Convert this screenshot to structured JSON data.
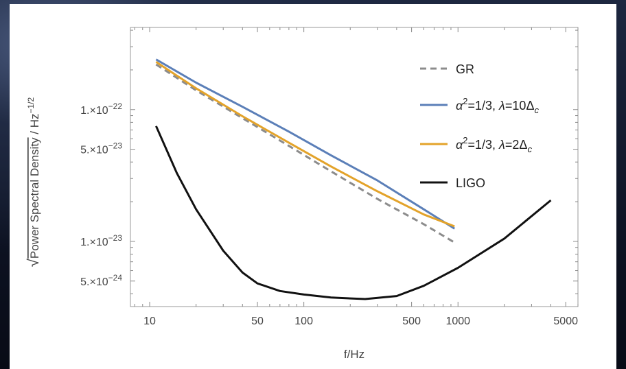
{
  "chart_data": {
    "type": "line",
    "xscale": "log",
    "yscale": "log",
    "xlim": [
      7.5,
      6000
    ],
    "ylim": [
      3.2e-24,
      4.2e-22
    ],
    "xlabel": "f/Hz",
    "ylabel_radical": "√",
    "ylabel": "Power Spectral Density",
    "ylabel_unit": " / Hz",
    "ylabel_unit_exp": "−1/2",
    "x_ticks": [
      {
        "value": 10,
        "label": "10"
      },
      {
        "value": 50,
        "label": "50"
      },
      {
        "value": 100,
        "label": "100"
      },
      {
        "value": 500,
        "label": "500"
      },
      {
        "value": 1000,
        "label": "1000"
      },
      {
        "value": 5000,
        "label": "5000"
      }
    ],
    "y_ticks": [
      {
        "value": 1e-22,
        "mant": "1.×10",
        "exp": "−22"
      },
      {
        "value": 5e-23,
        "mant": "5.×10",
        "exp": "−23"
      },
      {
        "value": 1e-23,
        "mant": "1.×10",
        "exp": "−23"
      },
      {
        "value": 5e-24,
        "mant": "5.×10",
        "exp": "−24"
      }
    ],
    "legend_position": "top-right",
    "series": [
      {
        "key": "gr",
        "color": "#8c8c8c",
        "dash": "9,6",
        "legend": [
          "GR"
        ],
        "points": [
          [
            11,
            2.2e-22
          ],
          [
            20,
            1.4e-22
          ],
          [
            40,
            8.6e-23
          ],
          [
            80,
            5.3e-23
          ],
          [
            150,
            3.4e-23
          ],
          [
            300,
            2.1e-23
          ],
          [
            600,
            1.35e-23
          ],
          [
            950,
            9.8e-24
          ]
        ]
      },
      {
        "key": "lambda10",
        "color": "#5b7fb8",
        "dash": "",
        "legend": [
          "α",
          "2",
          "=1/3, ",
          "λ",
          "=10Δ",
          "c"
        ],
        "points": [
          [
            11,
            2.4e-22
          ],
          [
            20,
            1.6e-22
          ],
          [
            40,
            1.05e-22
          ],
          [
            80,
            6.8e-23
          ],
          [
            150,
            4.5e-23
          ],
          [
            300,
            2.9e-23
          ],
          [
            600,
            1.75e-23
          ],
          [
            950,
            1.25e-23
          ]
        ]
      },
      {
        "key": "lambda2",
        "color": "#e3a32a",
        "dash": "",
        "legend": [
          "α",
          "2",
          "=1/3, ",
          "λ",
          "=2Δ",
          "c"
        ],
        "points": [
          [
            11,
            2.3e-22
          ],
          [
            20,
            1.45e-22
          ],
          [
            40,
            8.9e-23
          ],
          [
            80,
            5.6e-23
          ],
          [
            150,
            3.7e-23
          ],
          [
            300,
            2.4e-23
          ],
          [
            600,
            1.6e-23
          ],
          [
            950,
            1.3e-23
          ]
        ]
      },
      {
        "key": "ligo",
        "color": "#111111",
        "dash": "",
        "legend": [
          "LIGO"
        ],
        "points": [
          [
            11,
            7.5e-23
          ],
          [
            15,
            3.3e-23
          ],
          [
            20,
            1.75e-23
          ],
          [
            30,
            8.5e-24
          ],
          [
            40,
            5.8e-24
          ],
          [
            50,
            4.8e-24
          ],
          [
            70,
            4.2e-24
          ],
          [
            100,
            3.95e-24
          ],
          [
            150,
            3.75e-24
          ],
          [
            250,
            3.65e-24
          ],
          [
            400,
            3.85e-24
          ],
          [
            600,
            4.6e-24
          ],
          [
            1000,
            6.3e-24
          ],
          [
            2000,
            1.05e-23
          ],
          [
            4000,
            2.05e-23
          ]
        ]
      }
    ]
  }
}
